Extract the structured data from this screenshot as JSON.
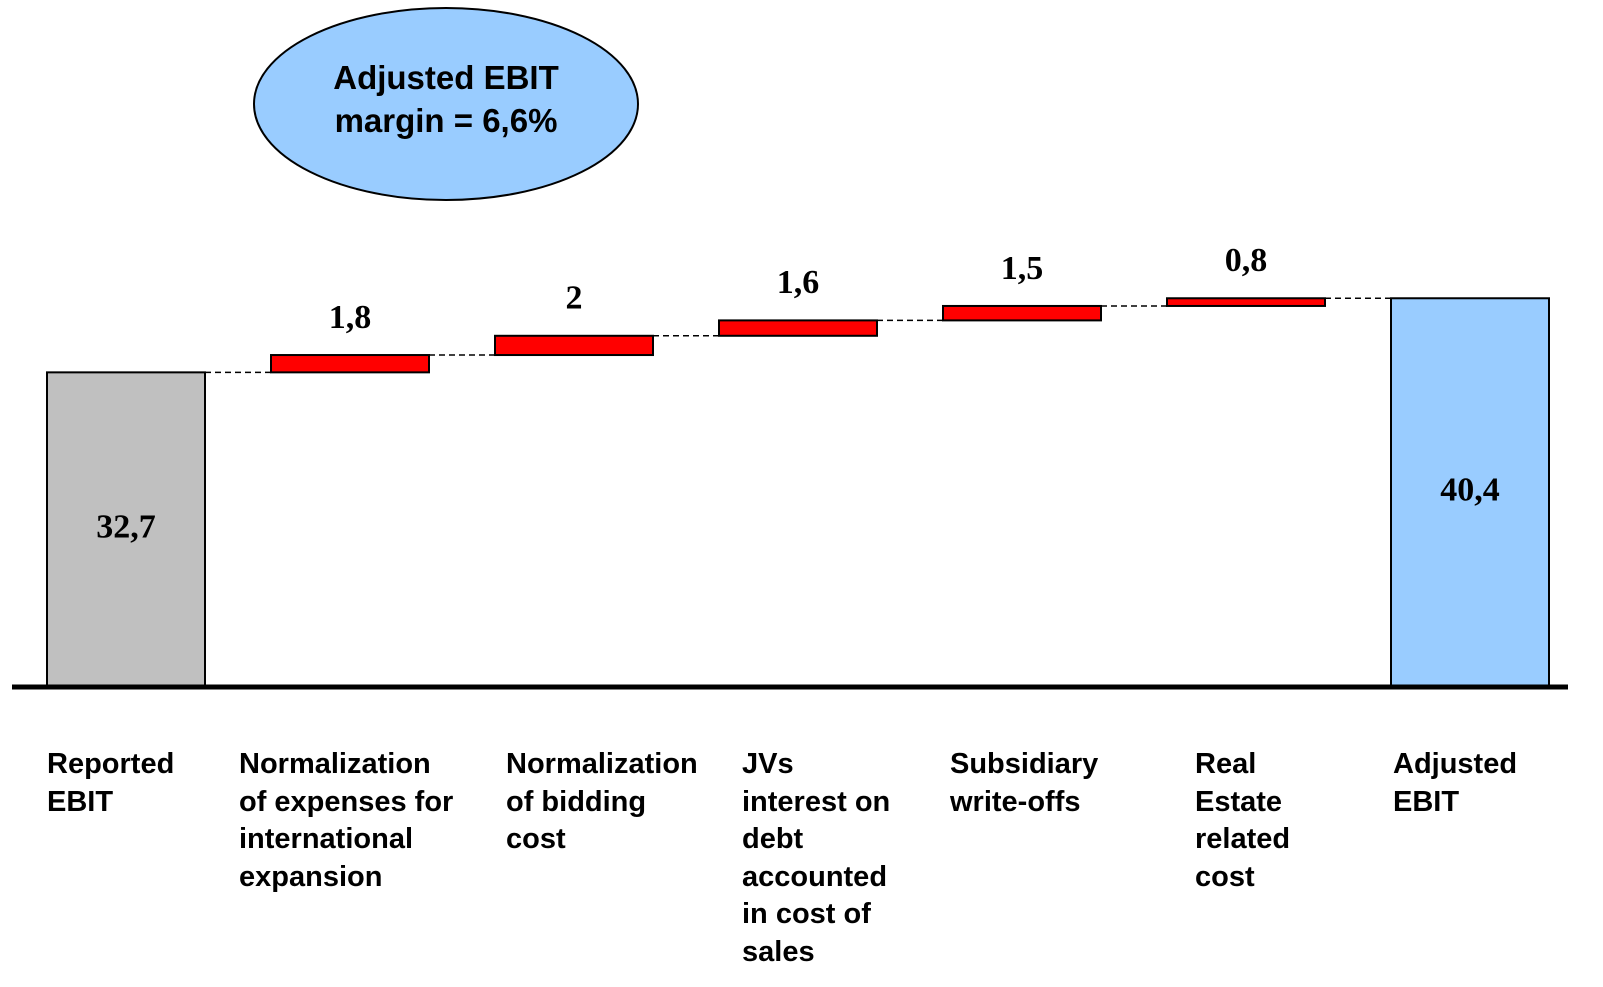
{
  "chart_data": {
    "type": "waterfall",
    "annotation": "Adjusted EBIT\nmargin = 6,6%",
    "categories": [
      "Reported\nEBIT",
      "Normalization\nof expenses for\ninternational\nexpansion",
      "Normalization\nof bidding\ncost",
      "JVs\ninterest on\ndebt\naccounted\nin cost of\nsales",
      "Subsidiary\nwrite-offs",
      "Real\nEstate\nrelated\ncost",
      "Adjusted\nEBIT"
    ],
    "values": [
      32.7,
      1.8,
      2,
      1.6,
      1.5,
      0.8,
      40.4
    ],
    "value_labels": [
      "32,7",
      "1,8",
      "2",
      "1,6",
      "1,5",
      "0,8",
      "40,4"
    ],
    "measures": [
      "total",
      "relative",
      "relative",
      "relative",
      "relative",
      "relative",
      "total"
    ],
    "colors": [
      "#c0c0c0",
      "#ff0000",
      "#ff0000",
      "#ff0000",
      "#ff0000",
      "#ff0000",
      "#99ccff"
    ],
    "ylim": [
      0,
      45
    ]
  }
}
